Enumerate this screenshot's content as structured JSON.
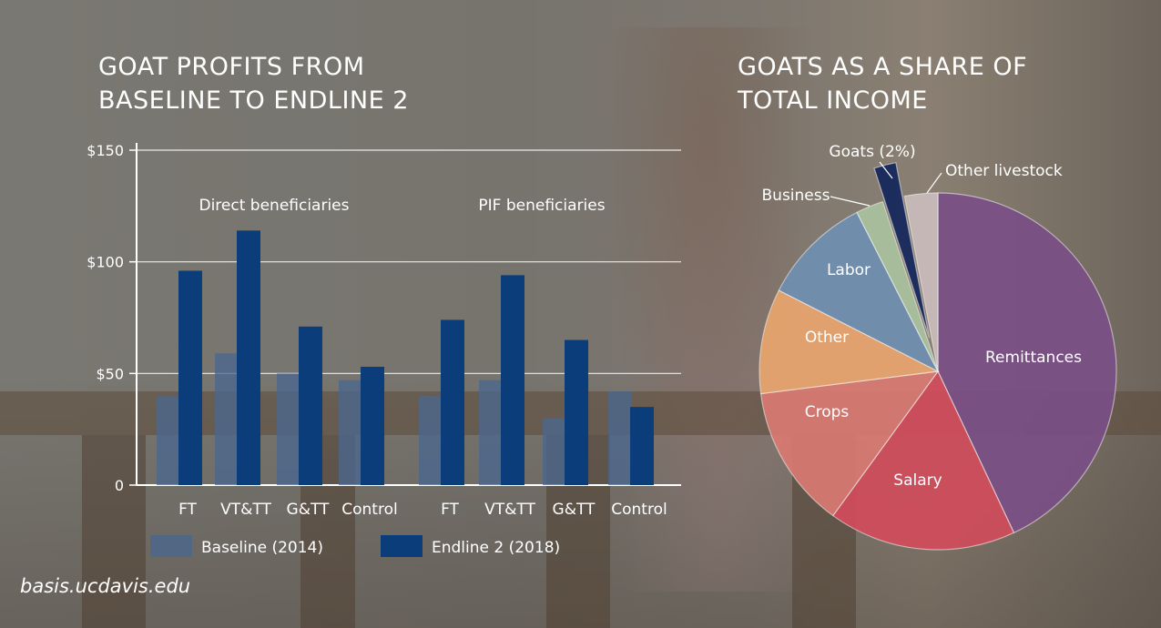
{
  "left_chart": {
    "title_line1": "GOAT PROFITS FROM",
    "title_line2": "BASELINE TO ENDLINE 2",
    "url": "basis.ucdavis.edu"
  },
  "right_chart": {
    "title_line1": "GOATS AS A SHARE OF",
    "title_line2": "TOTAL INCOME"
  },
  "chart_data": [
    {
      "type": "bar",
      "title": "GOAT PROFITS FROM BASELINE TO ENDLINE 2",
      "groups": [
        "Direct beneficiaries",
        "PIF beneficiaries"
      ],
      "categories": [
        "FT",
        "VT&TT",
        "G&TT",
        "Control",
        "FT",
        "VT&TT",
        "G&TT",
        "Control"
      ],
      "series": [
        {
          "name": "Baseline (2014)",
          "color": "#4a6790",
          "values": [
            40,
            59,
            50,
            47,
            40,
            47,
            30,
            42
          ]
        },
        {
          "name": "Endline 2 (2018)",
          "color": "#0b3d7a",
          "values": [
            96,
            114,
            71,
            53,
            74,
            94,
            65,
            35
          ]
        }
      ],
      "yticks": [
        0,
        50,
        100,
        150
      ],
      "ytick_labels": [
        "0",
        "$50",
        "$100",
        "$150"
      ],
      "ylim": [
        0,
        150
      ],
      "legend_position": "bottom",
      "grid": true
    },
    {
      "type": "pie",
      "title": "GOATS AS A SHARE OF TOTAL INCOME",
      "slices": [
        {
          "label": "Remittances",
          "value": 43,
          "color": "#7a4f86"
        },
        {
          "label": "Salary",
          "value": 17,
          "color": "#d14c5c"
        },
        {
          "label": "Crops",
          "value": 13,
          "color": "#d97a72"
        },
        {
          "label": "Other",
          "value": 9.5,
          "color": "#e8a56e"
        },
        {
          "label": "Labor",
          "value": 10,
          "color": "#6f8fb1"
        },
        {
          "label": "Business",
          "value": 2.5,
          "color": "#a9c29e"
        },
        {
          "label": "Goats (2%)",
          "value": 2,
          "color": "#14275c",
          "exploded": true
        },
        {
          "label": "Other livestock",
          "value": 3,
          "color": "#cbbcbc"
        }
      ]
    }
  ]
}
